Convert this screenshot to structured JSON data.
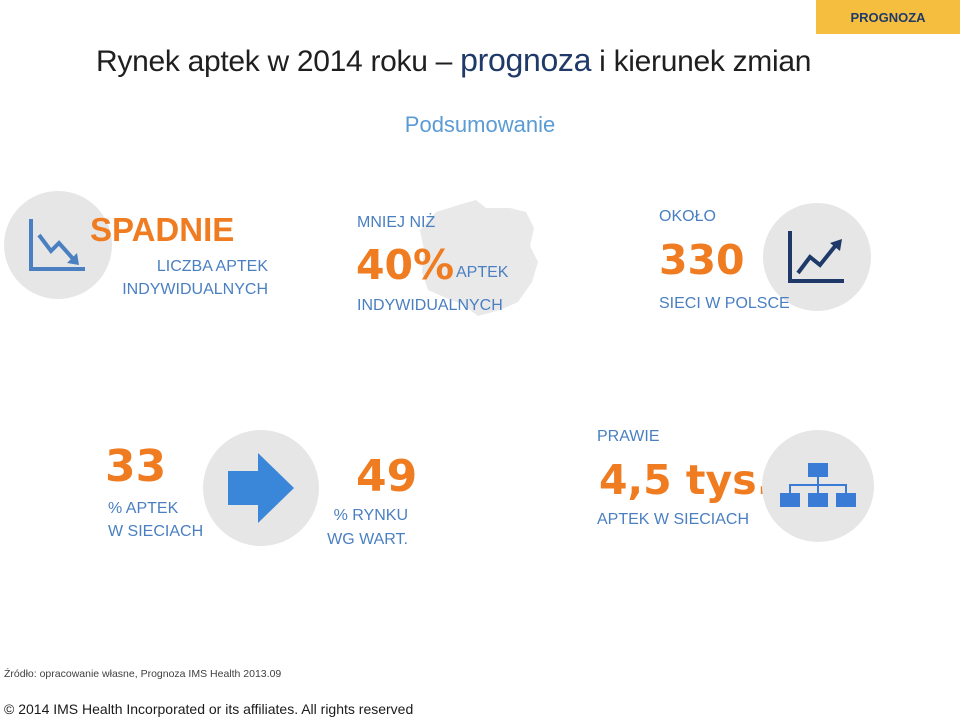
{
  "header": {
    "tag": "PROGNOZA",
    "title_pre": "Rynek aptek w 2014 roku – ",
    "title_accent": "prognoza",
    "title_post": " i kierunek zmian",
    "subtitle": "Podsumowanie"
  },
  "stats": {
    "s1": {
      "headline": "SPADNIE",
      "line1": "LICZBA APTEK",
      "line2": "INDYWIDUALNYCH",
      "icon": "chart-down-icon"
    },
    "s2": {
      "prefix": "MNIEJ NIŻ",
      "value": "40%",
      "label1": "APTEK",
      "label2": "INDYWIDUALNYCH",
      "icon": "poland-map-icon"
    },
    "s3": {
      "prefix": "OKOŁO",
      "value": "330",
      "label": "SIECI W POLSCE",
      "icon": "chart-up-icon"
    },
    "s4": {
      "value": "33",
      "line1": "% APTEK",
      "line2": "W SIECIACH",
      "icon": "arrow-right-icon"
    },
    "s5": {
      "value": "49",
      "line1": "% RYNKU",
      "line2": "WG WART.",
      "icon": "none"
    },
    "s6": {
      "prefix": "PRAWIE",
      "value": "4,5 tys.",
      "label": "APTEK W SIECIACH",
      "icon": "org-chart-icon"
    }
  },
  "colors": {
    "orange": "#f07c22",
    "blue": "#4a7fc1",
    "navy": "#1f3a68",
    "tag": "#f6be3e",
    "circle": "#e6e6e6"
  },
  "footer": {
    "source": "Źródło: opracowanie własne, Prognoza IMS Health 2013.09",
    "copyright": "©  2014 IMS Health Incorporated or its affiliates. All rights reserved"
  }
}
